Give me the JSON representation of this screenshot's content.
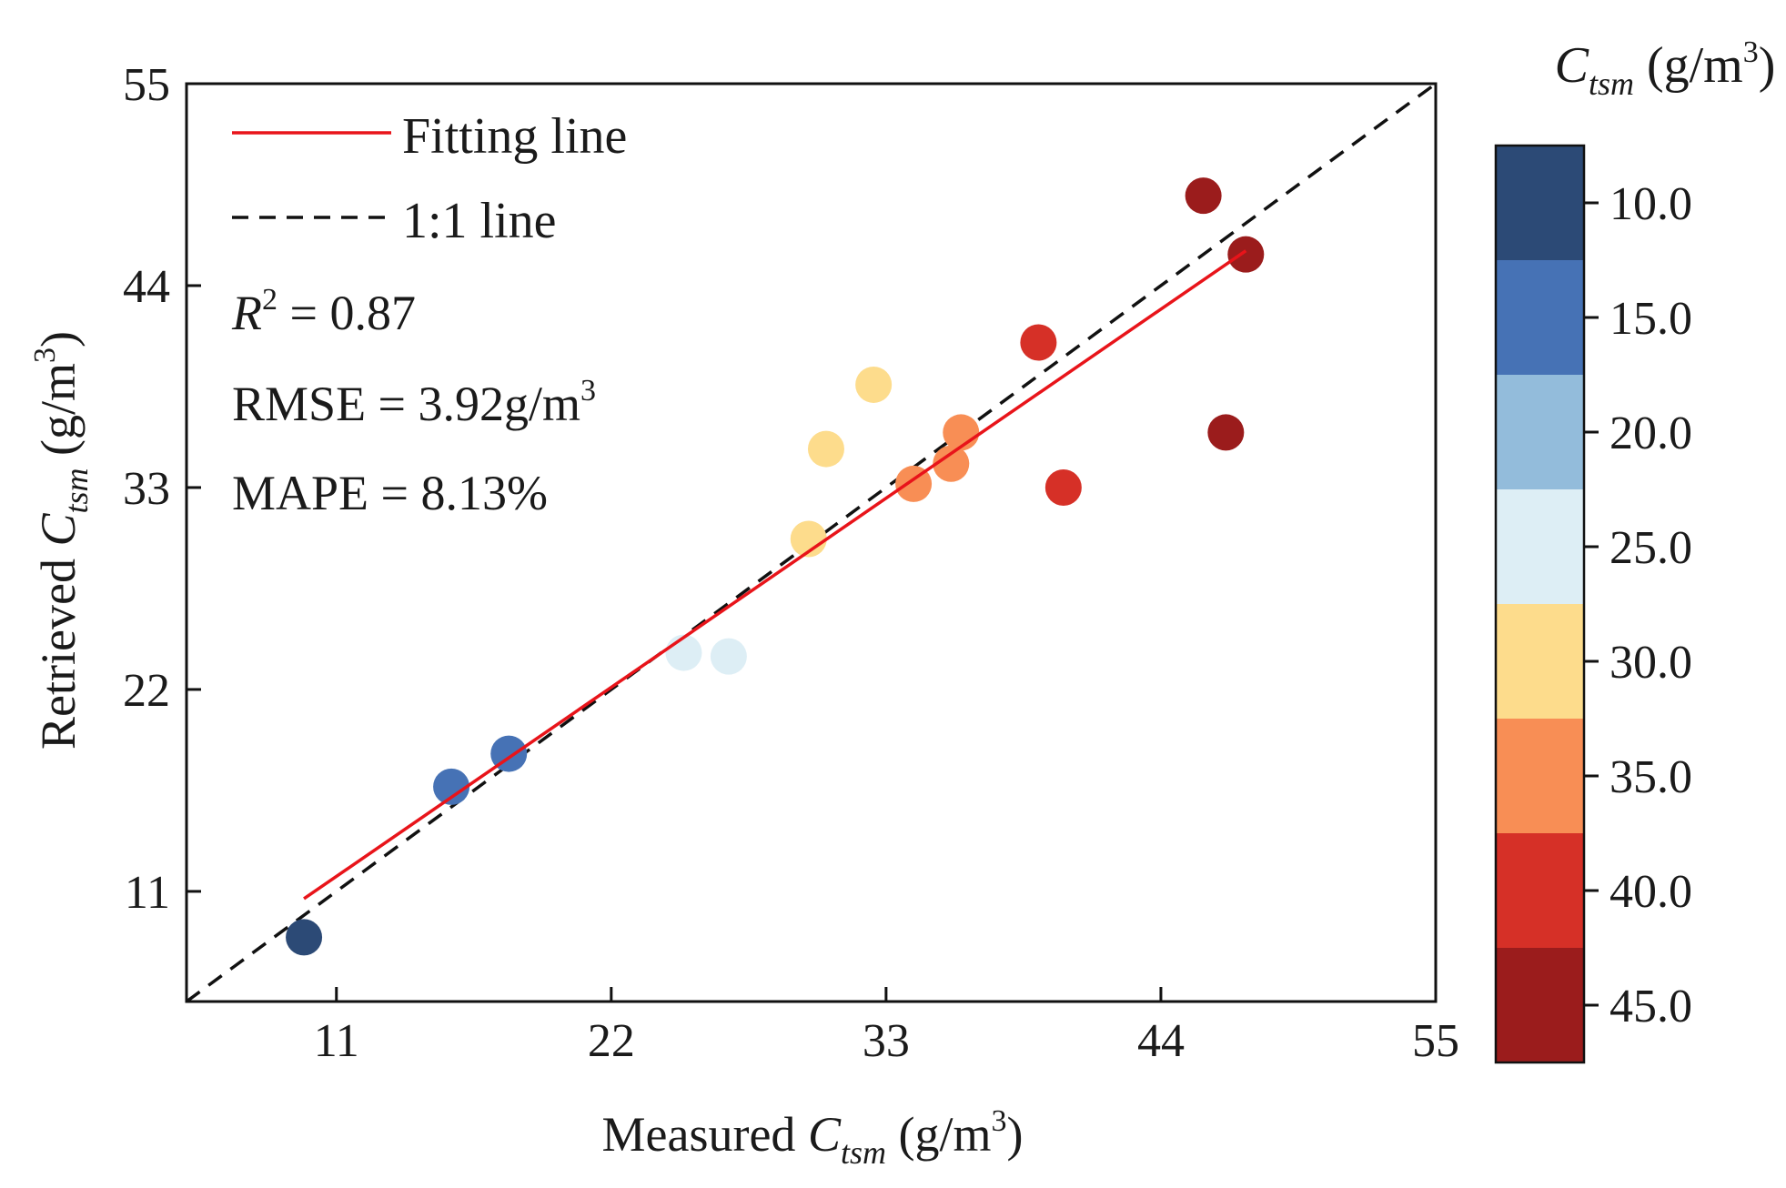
{
  "chart_data": {
    "type": "scatter",
    "xlabel": {
      "main": "Measured ",
      "var": "C",
      "sub": "tsm",
      "unit": " (g/m",
      "sup": "3",
      "close": ")"
    },
    "ylabel": {
      "main": "Retrieved ",
      "var": "C",
      "sub": "tsm",
      "unit": " (g/m",
      "sup": "3",
      "close": ")"
    },
    "xlim": [
      5,
      55
    ],
    "ylim": [
      5,
      55
    ],
    "xticks": [
      "11",
      "22",
      "33",
      "44",
      "55"
    ],
    "yticks": [
      "11",
      "22",
      "33",
      "44",
      "55"
    ],
    "xtick_values": [
      11,
      22,
      33,
      44,
      55
    ],
    "ytick_values": [
      11,
      22,
      33,
      44,
      55
    ],
    "grid": false,
    "legend": {
      "placement": "top-left",
      "entries": [
        {
          "label": "Fitting line",
          "style": "solid",
          "color": "#e8141a"
        },
        {
          "label": "1:1 line",
          "style": "dashed",
          "color": "#111111"
        }
      ]
    },
    "stats": {
      "r2_var": "R",
      "r2_sup": "2",
      "r2_value": " = 0.87",
      "rmse_text": "RMSE = 3.92g/m",
      "rmse_sup": "3",
      "mape_text": "MAPE = 8.13%"
    },
    "fitting_line": {
      "x": [
        9.7,
        47.4
      ],
      "y": [
        10.6,
        45.9
      ]
    },
    "identity_line": {
      "x": [
        5,
        55
      ],
      "y": [
        5,
        55
      ]
    },
    "points": [
      {
        "x": 9.7,
        "y": 8.5,
        "c": 10
      },
      {
        "x": 15.6,
        "y": 16.7,
        "c": 15
      },
      {
        "x": 17.9,
        "y": 18.5,
        "c": 15
      },
      {
        "x": 24.9,
        "y": 24.0,
        "c": 25
      },
      {
        "x": 26.7,
        "y": 23.8,
        "c": 25
      },
      {
        "x": 29.9,
        "y": 30.2,
        "c": 30
      },
      {
        "x": 30.6,
        "y": 35.1,
        "c": 30
      },
      {
        "x": 32.5,
        "y": 38.6,
        "c": 30
      },
      {
        "x": 34.1,
        "y": 33.2,
        "c": 35
      },
      {
        "x": 35.6,
        "y": 34.3,
        "c": 35
      },
      {
        "x": 36.0,
        "y": 36.0,
        "c": 35
      },
      {
        "x": 39.1,
        "y": 40.9,
        "c": 40
      },
      {
        "x": 40.1,
        "y": 33.0,
        "c": 40
      },
      {
        "x": 45.7,
        "y": 48.9,
        "c": 45
      },
      {
        "x": 46.6,
        "y": 36.0,
        "c": 45
      },
      {
        "x": 47.4,
        "y": 45.7,
        "c": 45
      }
    ],
    "colorbar": {
      "title_var": "C",
      "title_sub": "tsm",
      "title_unit": " (g/m",
      "title_sup": "3",
      "title_close": ")",
      "ticks": [
        "10.0",
        "15.0",
        "20.0",
        "25.0",
        "30.0",
        "35.0",
        "40.0",
        "45.0"
      ],
      "colors": [
        "#2c4a76",
        "#4672b5",
        "#93bcdb",
        "#ddeef5",
        "#fddc8c",
        "#f88e55",
        "#d63027",
        "#9b1c1c"
      ]
    }
  }
}
